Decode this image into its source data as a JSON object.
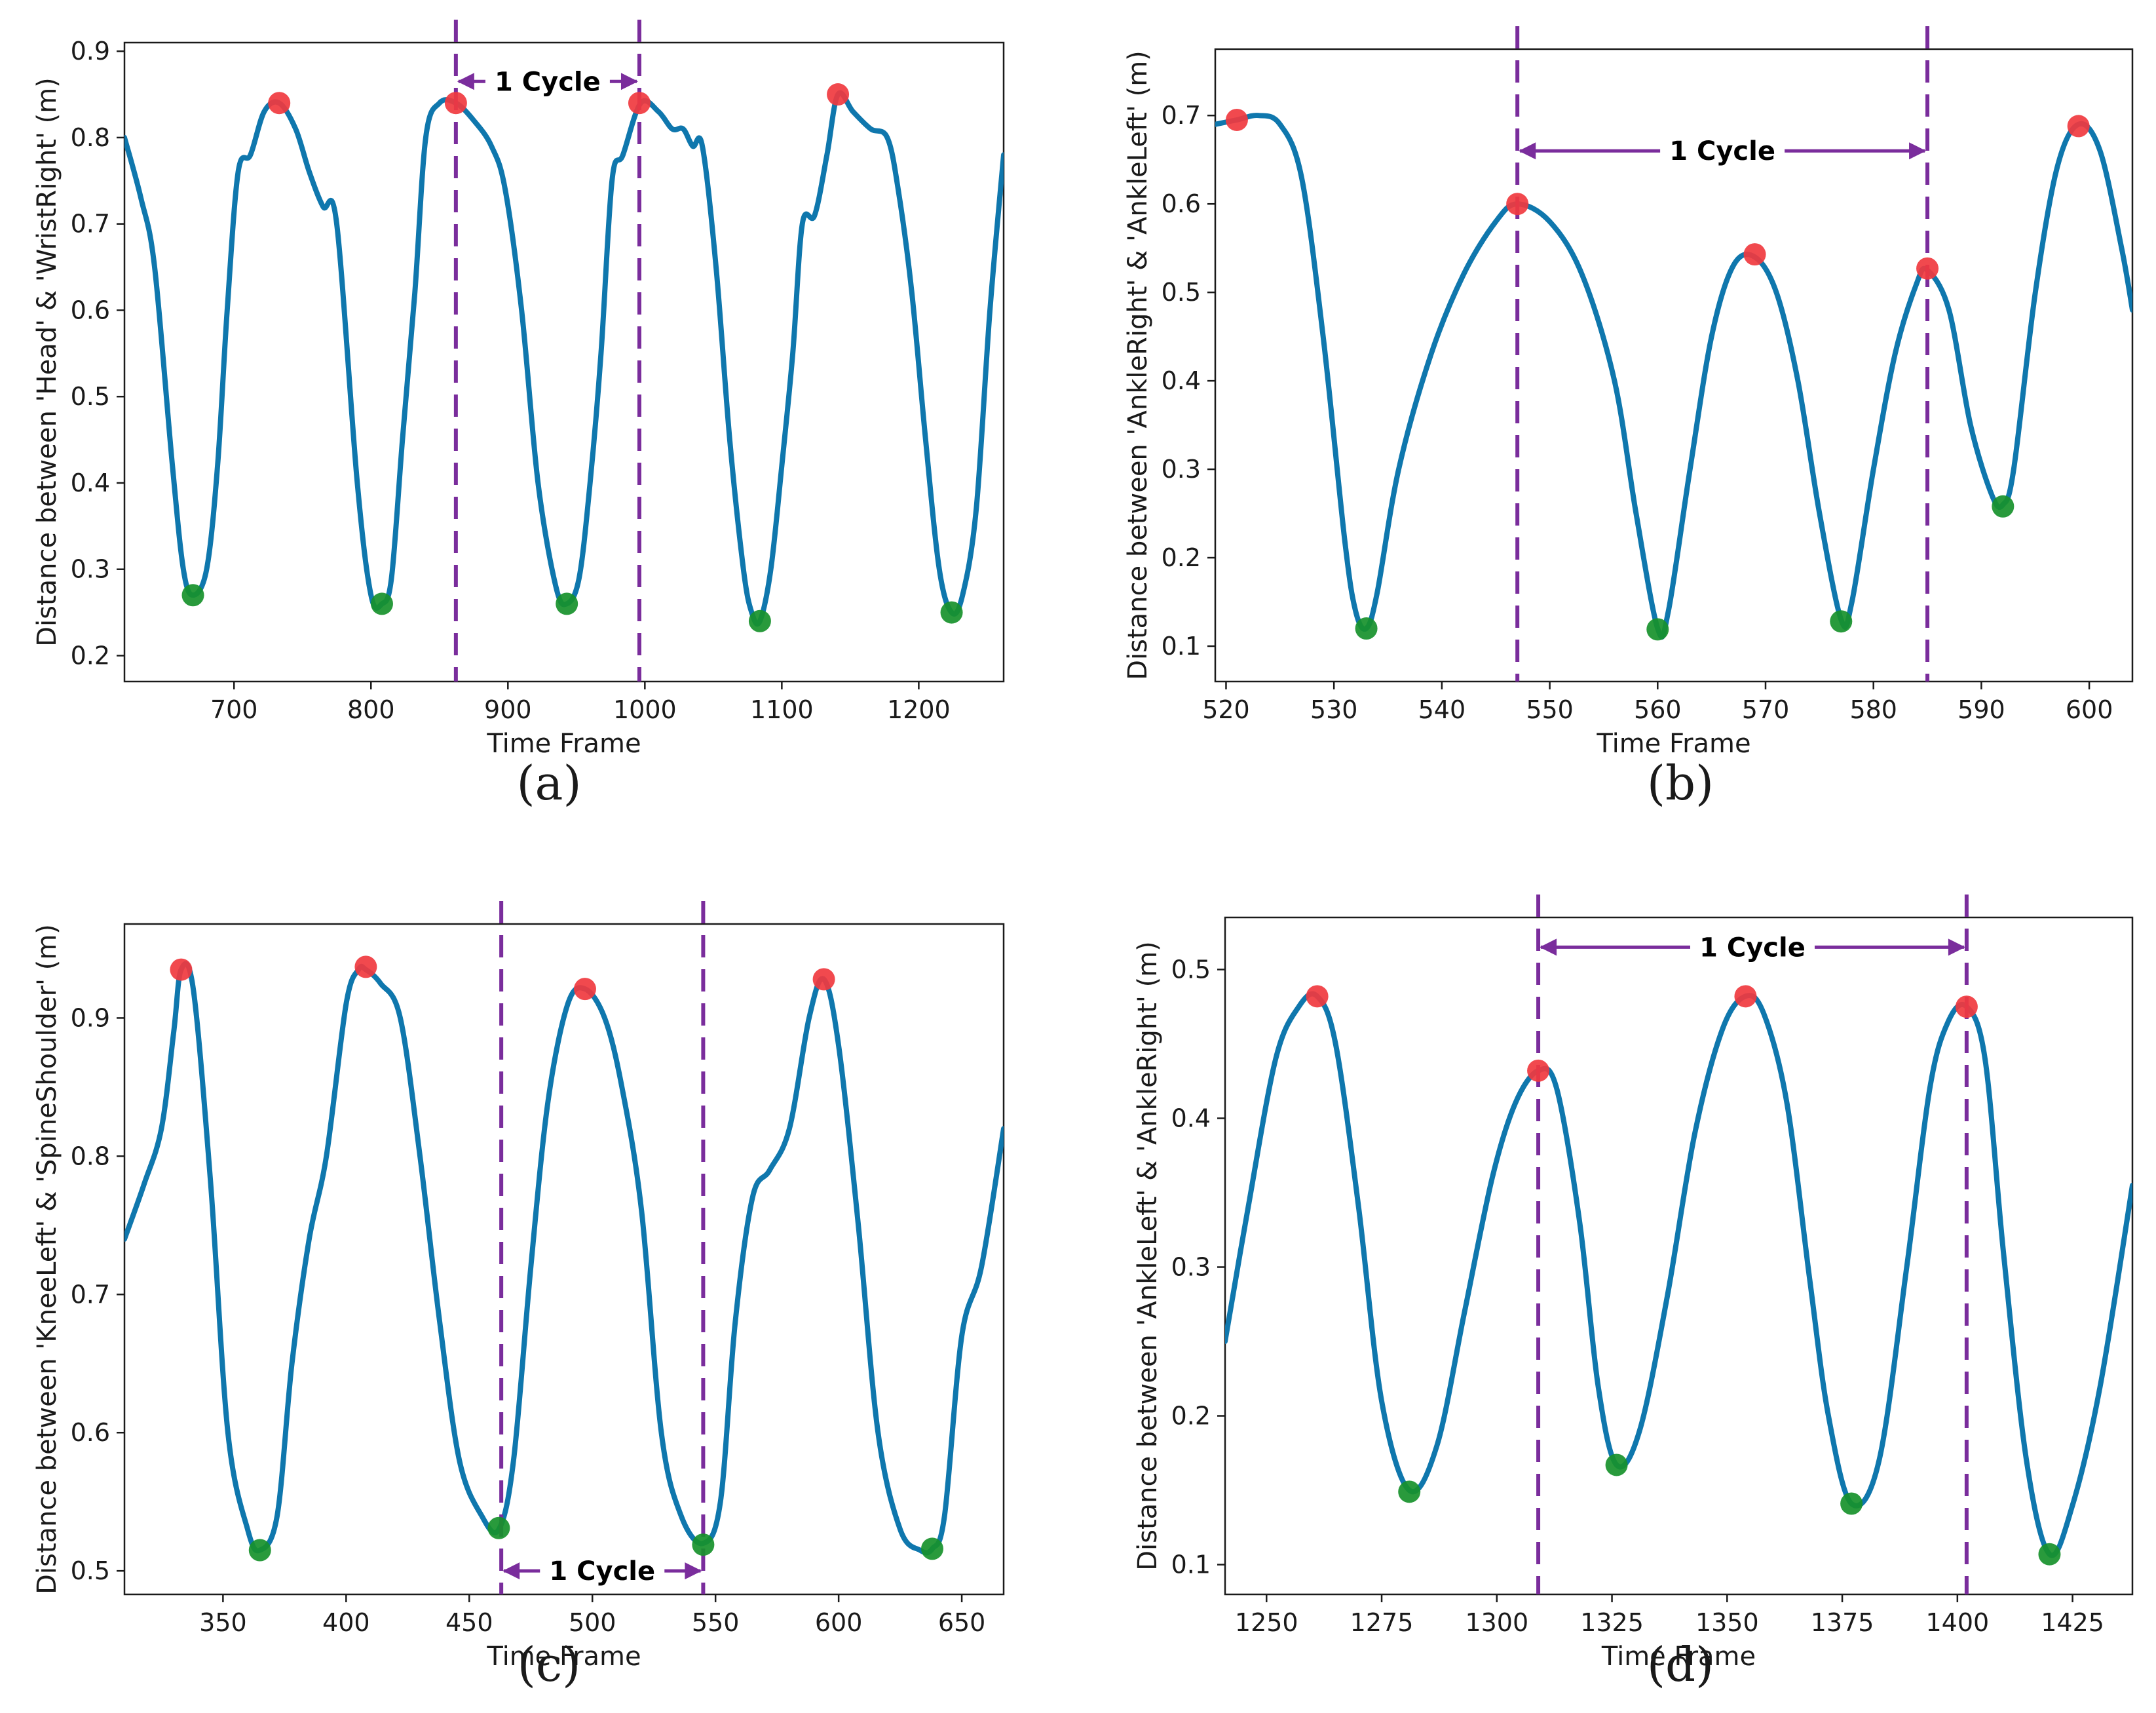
{
  "colors": {
    "line": "#0f77ad",
    "peak": "#f03a3f",
    "trough": "#17912b",
    "cycle": "#7a2d9c",
    "axis": "#1a1a1a"
  },
  "chart_data": [
    {
      "type": "line",
      "panel_label": "(a)",
      "xlabel": "Time Frame",
      "ylabel": "Distance between 'Head' & 'WristRight' (m)",
      "xlim": [
        620,
        1262
      ],
      "ylim": [
        0.17,
        0.91
      ],
      "xticks": [
        700,
        800,
        900,
        1000,
        1100,
        1200
      ],
      "xtick_labels": [
        "700",
        "800",
        "900",
        "1000",
        "1100",
        "1200"
      ],
      "yticks": [
        0.2,
        0.3,
        0.4,
        0.5,
        0.6,
        0.7,
        0.8,
        0.9
      ],
      "ytick_labels": [
        "0.2",
        "0.3",
        "0.4",
        "0.5",
        "0.6",
        "0.7",
        "0.8",
        "0.9"
      ],
      "x": [
        620,
        632,
        642,
        655,
        663,
        670,
        680,
        688,
        695,
        703,
        712,
        722,
        733,
        745,
        755,
        765,
        775,
        790,
        800,
        808,
        815,
        823,
        832,
        840,
        850,
        862,
        875,
        888,
        898,
        910,
        922,
        935,
        943,
        952,
        960,
        968,
        976,
        984,
        997,
        1010,
        1020,
        1028,
        1035,
        1042,
        1052,
        1062,
        1072,
        1078,
        1084,
        1092,
        1100,
        1108,
        1115,
        1124,
        1133,
        1141,
        1152,
        1165,
        1177,
        1185,
        1195,
        1205,
        1215,
        1224,
        1232,
        1242,
        1252,
        1262
      ],
      "y": [
        0.8,
        0.73,
        0.65,
        0.42,
        0.3,
        0.27,
        0.3,
        0.42,
        0.6,
        0.76,
        0.78,
        0.83,
        0.84,
        0.81,
        0.76,
        0.72,
        0.7,
        0.4,
        0.27,
        0.26,
        0.29,
        0.45,
        0.62,
        0.8,
        0.84,
        0.84,
        0.82,
        0.79,
        0.74,
        0.6,
        0.4,
        0.28,
        0.26,
        0.29,
        0.4,
        0.55,
        0.75,
        0.78,
        0.84,
        0.83,
        0.81,
        0.81,
        0.79,
        0.79,
        0.65,
        0.45,
        0.3,
        0.25,
        0.24,
        0.3,
        0.42,
        0.55,
        0.7,
        0.71,
        0.78,
        0.85,
        0.83,
        0.81,
        0.8,
        0.74,
        0.62,
        0.45,
        0.3,
        0.25,
        0.27,
        0.37,
        0.6,
        0.78
      ],
      "peaks": [
        [
          733,
          0.84
        ],
        [
          862,
          0.84
        ],
        [
          996,
          0.84
        ],
        [
          1141,
          0.85
        ]
      ],
      "troughs": [
        [
          670,
          0.27
        ],
        [
          808,
          0.26
        ],
        [
          943,
          0.26
        ],
        [
          1084,
          0.24
        ],
        [
          1224,
          0.25
        ]
      ],
      "cycle_lines": [
        862,
        996
      ],
      "cycle_arrow": {
        "x1": 862,
        "x2": 996,
        "y": 0.865,
        "label": "1 Cycle"
      }
    },
    {
      "type": "line",
      "panel_label": "(b)",
      "xlabel": "Time Frame",
      "ylabel": "Distance between 'AnkleRight' & 'AnkleLeft' (m)",
      "xlim": [
        519,
        604
      ],
      "ylim": [
        0.06,
        0.775
      ],
      "xticks": [
        520,
        530,
        540,
        550,
        560,
        570,
        580,
        590,
        600
      ],
      "xtick_labels": [
        "520",
        "530",
        "540",
        "550",
        "560",
        "570",
        "580",
        "590",
        "600"
      ],
      "yticks": [
        0.1,
        0.2,
        0.3,
        0.4,
        0.5,
        0.6,
        0.7
      ],
      "ytick_labels": [
        "0.1",
        "0.2",
        "0.3",
        "0.4",
        "0.5",
        "0.6",
        "0.7"
      ],
      "x": [
        519,
        521,
        523,
        525,
        527,
        529,
        531,
        532,
        533,
        534,
        536,
        539,
        542,
        545,
        547,
        550,
        553,
        556,
        558,
        560,
        561,
        563,
        565,
        567,
        569,
        571,
        573,
        575,
        577,
        578,
        580,
        582,
        584,
        585,
        587,
        589,
        591,
        592,
        593,
        595,
        597,
        599,
        601,
        603,
        604
      ],
      "y": [
        0.69,
        0.695,
        0.7,
        0.69,
        0.63,
        0.45,
        0.22,
        0.14,
        0.12,
        0.16,
        0.3,
        0.43,
        0.52,
        0.58,
        0.6,
        0.58,
        0.52,
        0.4,
        0.25,
        0.12,
        0.14,
        0.3,
        0.45,
        0.53,
        0.54,
        0.5,
        0.4,
        0.25,
        0.13,
        0.15,
        0.3,
        0.43,
        0.51,
        0.525,
        0.48,
        0.35,
        0.27,
        0.26,
        0.3,
        0.5,
        0.64,
        0.69,
        0.66,
        0.55,
        0.48
      ],
      "peaks": [
        [
          521,
          0.695
        ],
        [
          547,
          0.6
        ],
        [
          569,
          0.543
        ],
        [
          585,
          0.527
        ],
        [
          599,
          0.688
        ]
      ],
      "troughs": [
        [
          533,
          0.12
        ],
        [
          560,
          0.119
        ],
        [
          577,
          0.128
        ],
        [
          592,
          0.258
        ]
      ],
      "cycle_lines": [
        547,
        585
      ],
      "cycle_arrow": {
        "x1": 547,
        "x2": 585,
        "y": 0.66,
        "label": "1 Cycle"
      }
    },
    {
      "type": "line",
      "panel_label": "(c)",
      "xlabel": "Time Frame",
      "ylabel": "Distance between 'KneeLeft' & 'SpineShoulder' (m)",
      "xlim": [
        310,
        667
      ],
      "ylim": [
        0.483,
        0.968
      ],
      "xticks": [
        350,
        400,
        450,
        500,
        550,
        600,
        650
      ],
      "xtick_labels": [
        "350",
        "400",
        "450",
        "500",
        "550",
        "600",
        "650"
      ],
      "yticks": [
        0.5,
        0.6,
        0.7,
        0.8,
        0.9
      ],
      "ytick_labels": [
        "0.5",
        "0.6",
        "0.7",
        "0.8",
        "0.9"
      ],
      "x": [
        310,
        318,
        325,
        330,
        333,
        338,
        345,
        352,
        360,
        365,
        372,
        378,
        385,
        392,
        400,
        405,
        408,
        414,
        422,
        430,
        438,
        446,
        455,
        462,
        468,
        475,
        482,
        490,
        497,
        505,
        512,
        520,
        528,
        536,
        545,
        552,
        558,
        565,
        572,
        580,
        588,
        594,
        600,
        608,
        616,
        625,
        633,
        638,
        643,
        650,
        658,
        667
      ],
      "y": [
        0.74,
        0.78,
        0.82,
        0.89,
        0.935,
        0.92,
        0.78,
        0.6,
        0.53,
        0.515,
        0.54,
        0.65,
        0.74,
        0.8,
        0.91,
        0.935,
        0.935,
        0.925,
        0.9,
        0.8,
        0.68,
        0.58,
        0.54,
        0.53,
        0.58,
        0.72,
        0.84,
        0.91,
        0.921,
        0.9,
        0.85,
        0.76,
        0.6,
        0.54,
        0.52,
        0.55,
        0.68,
        0.77,
        0.79,
        0.82,
        0.9,
        0.928,
        0.88,
        0.75,
        0.6,
        0.53,
        0.515,
        0.516,
        0.54,
        0.67,
        0.72,
        0.82
      ],
      "peaks": [
        [
          333,
          0.935
        ],
        [
          408,
          0.937
        ],
        [
          497,
          0.921
        ],
        [
          594,
          0.928
        ]
      ],
      "troughs": [
        [
          365,
          0.515
        ],
        [
          462,
          0.531
        ],
        [
          545,
          0.519
        ],
        [
          638,
          0.516
        ]
      ],
      "cycle_lines": [
        463,
        545
      ],
      "cycle_arrow": {
        "x1": 463,
        "x2": 545,
        "y": 0.5,
        "label": "1 Cycle"
      }
    },
    {
      "type": "line",
      "panel_label": "(d)",
      "xlabel": "Time Frame",
      "ylabel": "Distance between 'AnkleLeft' & 'AnkleRight' (m)",
      "xlim": [
        1241,
        1438
      ],
      "ylim": [
        0.08,
        0.535
      ],
      "xticks": [
        1250,
        1275,
        1300,
        1325,
        1350,
        1375,
        1400,
        1425
      ],
      "xtick_labels": [
        "1250",
        "1275",
        "1300",
        "1325",
        "1350",
        "1375",
        "1400",
        "1425"
      ],
      "yticks": [
        0.1,
        0.2,
        0.3,
        0.4,
        0.5
      ],
      "ytick_labels": [
        "0.1",
        "0.2",
        "0.3",
        "0.4",
        "0.5"
      ],
      "x": [
        1241,
        1246,
        1252,
        1257,
        1261,
        1265,
        1270,
        1275,
        1281,
        1287,
        1293,
        1299,
        1304,
        1309,
        1313,
        1318,
        1322,
        1326,
        1331,
        1337,
        1343,
        1349,
        1354,
        1358,
        1363,
        1368,
        1372,
        1377,
        1383,
        1389,
        1394,
        1398,
        1402,
        1406,
        1410,
        1415,
        1420,
        1425,
        1431,
        1438
      ],
      "y": [
        0.25,
        0.34,
        0.44,
        0.475,
        0.482,
        0.45,
        0.34,
        0.21,
        0.15,
        0.18,
        0.27,
        0.36,
        0.41,
        0.432,
        0.42,
        0.33,
        0.22,
        0.167,
        0.19,
        0.28,
        0.39,
        0.46,
        0.482,
        0.47,
        0.41,
        0.29,
        0.2,
        0.141,
        0.17,
        0.3,
        0.42,
        0.465,
        0.475,
        0.44,
        0.31,
        0.17,
        0.107,
        0.14,
        0.22,
        0.355
      ],
      "peaks": [
        [
          1261,
          0.482
        ],
        [
          1309,
          0.432
        ],
        [
          1354,
          0.482
        ],
        [
          1402,
          0.475
        ]
      ],
      "troughs": [
        [
          1281,
          0.149
        ],
        [
          1326,
          0.167
        ],
        [
          1377,
          0.141
        ],
        [
          1420,
          0.107
        ]
      ],
      "cycle_lines": [
        1309,
        1402
      ],
      "cycle_arrow": {
        "x1": 1309,
        "x2": 1402,
        "y": 0.515,
        "label": "1 Cycle"
      }
    }
  ]
}
